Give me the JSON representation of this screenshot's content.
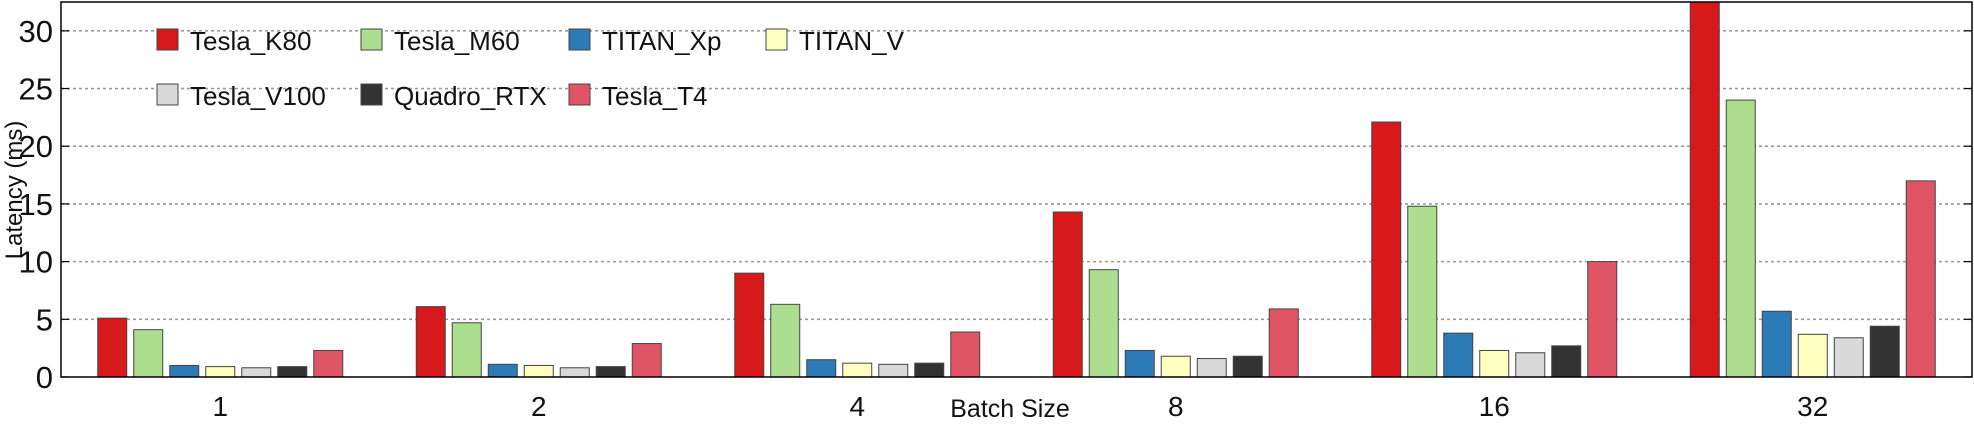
{
  "chart_data": {
    "type": "bar",
    "title": "",
    "xlabel": "Batch Size",
    "ylabel": "Latency (ms)",
    "categories": [
      "1",
      "2",
      "4",
      "8",
      "16",
      "32"
    ],
    "ylim": [
      0,
      32.5
    ],
    "yticks": [
      0,
      5,
      10,
      15,
      20,
      25,
      30
    ],
    "grid": "horizontal dotted",
    "legend_position": "top-left",
    "series": [
      {
        "name": "Tesla_K80",
        "color": "#d7191c",
        "values": [
          5.1,
          6.1,
          9.0,
          14.3,
          22.1,
          32.5
        ]
      },
      {
        "name": "Tesla_M60",
        "color": "#addd8e",
        "values": [
          4.1,
          4.7,
          6.3,
          9.3,
          14.8,
          24.0
        ]
      },
      {
        "name": "TITAN_Xp",
        "color": "#2c7bb6",
        "values": [
          1.0,
          1.1,
          1.5,
          2.3,
          3.8,
          5.7
        ]
      },
      {
        "name": "TITAN_V",
        "color": "#ffffbf",
        "values": [
          0.9,
          1.0,
          1.2,
          1.8,
          2.3,
          3.7
        ]
      },
      {
        "name": "Tesla_V100",
        "color": "#d9d9d9",
        "values": [
          0.8,
          0.8,
          1.1,
          1.6,
          2.1,
          3.4
        ]
      },
      {
        "name": "Quadro_RTX",
        "color": "#333333",
        "values": [
          0.9,
          0.9,
          1.2,
          1.8,
          2.7,
          4.4
        ]
      },
      {
        "name": "Tesla_T4",
        "color": "#e05565",
        "values": [
          2.3,
          2.9,
          3.9,
          5.9,
          10.0,
          17.0
        ]
      }
    ]
  }
}
